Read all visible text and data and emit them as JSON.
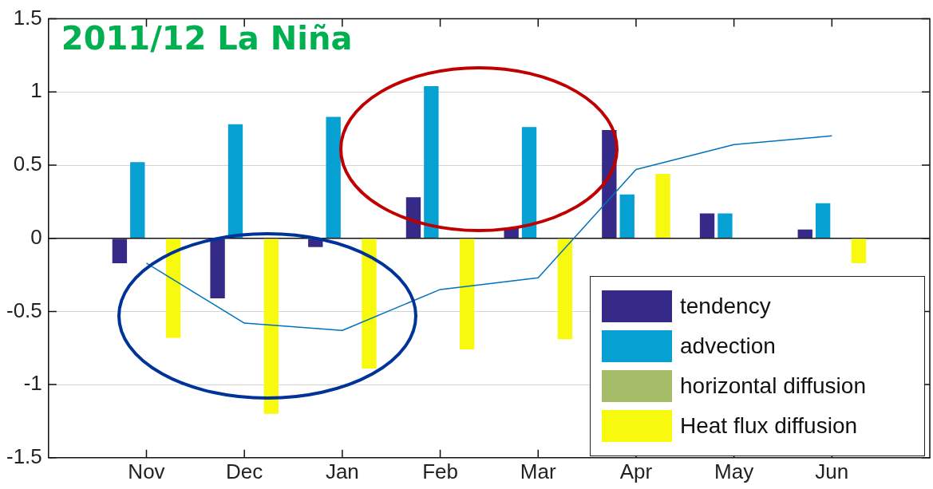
{
  "chart_data": {
    "type": "bar",
    "categories": [
      "Nov",
      "Dec",
      "Jan",
      "Feb",
      "Mar",
      "Apr",
      "May",
      "Jun"
    ],
    "series": [
      {
        "name": "tendency",
        "color": "#352a87",
        "values": [
          -0.17,
          -0.41,
          -0.06,
          0.28,
          0.07,
          0.74,
          0.17,
          0.06
        ]
      },
      {
        "name": "advection",
        "color": "#06a0d2",
        "values": [
          0.52,
          0.78,
          0.83,
          1.04,
          0.76,
          0.3,
          0.17,
          0.24
        ]
      },
      {
        "name": "horizontal diffusion",
        "color": "#a5bd68",
        "values": [
          0,
          0,
          0,
          0,
          0,
          0,
          0,
          0
        ]
      },
      {
        "name": "Heat flux diffusion",
        "color": "#f7f90e",
        "values": [
          -0.68,
          -1.2,
          -0.89,
          -0.76,
          -0.69,
          0.44,
          0,
          -0.17
        ]
      },
      {
        "type": "line",
        "color": "#0072bd",
        "values": [
          -0.17,
          -0.58,
          -0.63,
          -0.35,
          -0.27,
          0.47,
          0.64,
          0.7
        ]
      }
    ],
    "ylim": [
      -1.5,
      1.5
    ],
    "yticks": [
      -1.5,
      -1,
      -0.5,
      0,
      0.5,
      1,
      1.5
    ],
    "grid": "y",
    "legend": "bottom right",
    "marker": "none",
    "annotations": [
      "2011/12 La Niña"
    ]
  }
}
